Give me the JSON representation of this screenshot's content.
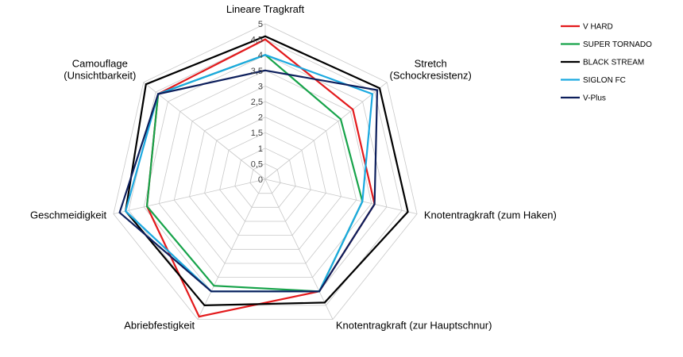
{
  "chart_data": {
    "type": "radar",
    "categories": [
      "Lineare Tragkraft",
      "Stretch\n(Schockresistenz)",
      "Knotentragkraft (zum Haken)",
      "Knotentragkraft (zur Hauptschnur)",
      "Abriebfestigkeit",
      "Geschmeidigkeit",
      "Camouflage\n(Unsichtbarkeit)"
    ],
    "rlim": [
      0,
      5
    ],
    "ticks": [
      "0",
      "0,5",
      "1",
      "1,5",
      "2",
      "2,5",
      "3",
      "3,5",
      "4",
      "4,5",
      "5"
    ],
    "series": [
      {
        "name": "V HARD",
        "color": "#e31a1c",
        "values": [
          4.5,
          3.6,
          3.6,
          4.0,
          4.9,
          3.9,
          4.4
        ]
      },
      {
        "name": "SUPER TORNADO",
        "color": "#17a34a",
        "values": [
          4.0,
          3.1,
          3.2,
          4.0,
          3.8,
          3.9,
          4.4
        ]
      },
      {
        "name": "BLACK STREAM",
        "color": "#000000",
        "values": [
          4.6,
          4.7,
          4.7,
          4.4,
          4.5,
          4.6,
          4.9
        ]
      },
      {
        "name": "SIGLON FC",
        "color": "#1ba9e0",
        "values": [
          4.0,
          4.4,
          3.2,
          4.0,
          4.0,
          4.6,
          4.4
        ]
      },
      {
        "name": "V-Plus",
        "color": "#0d1f5c",
        "values": [
          3.5,
          4.6,
          3.6,
          4.0,
          4.0,
          4.8,
          4.4
        ]
      }
    ],
    "grid": true,
    "legend": "top-right"
  }
}
